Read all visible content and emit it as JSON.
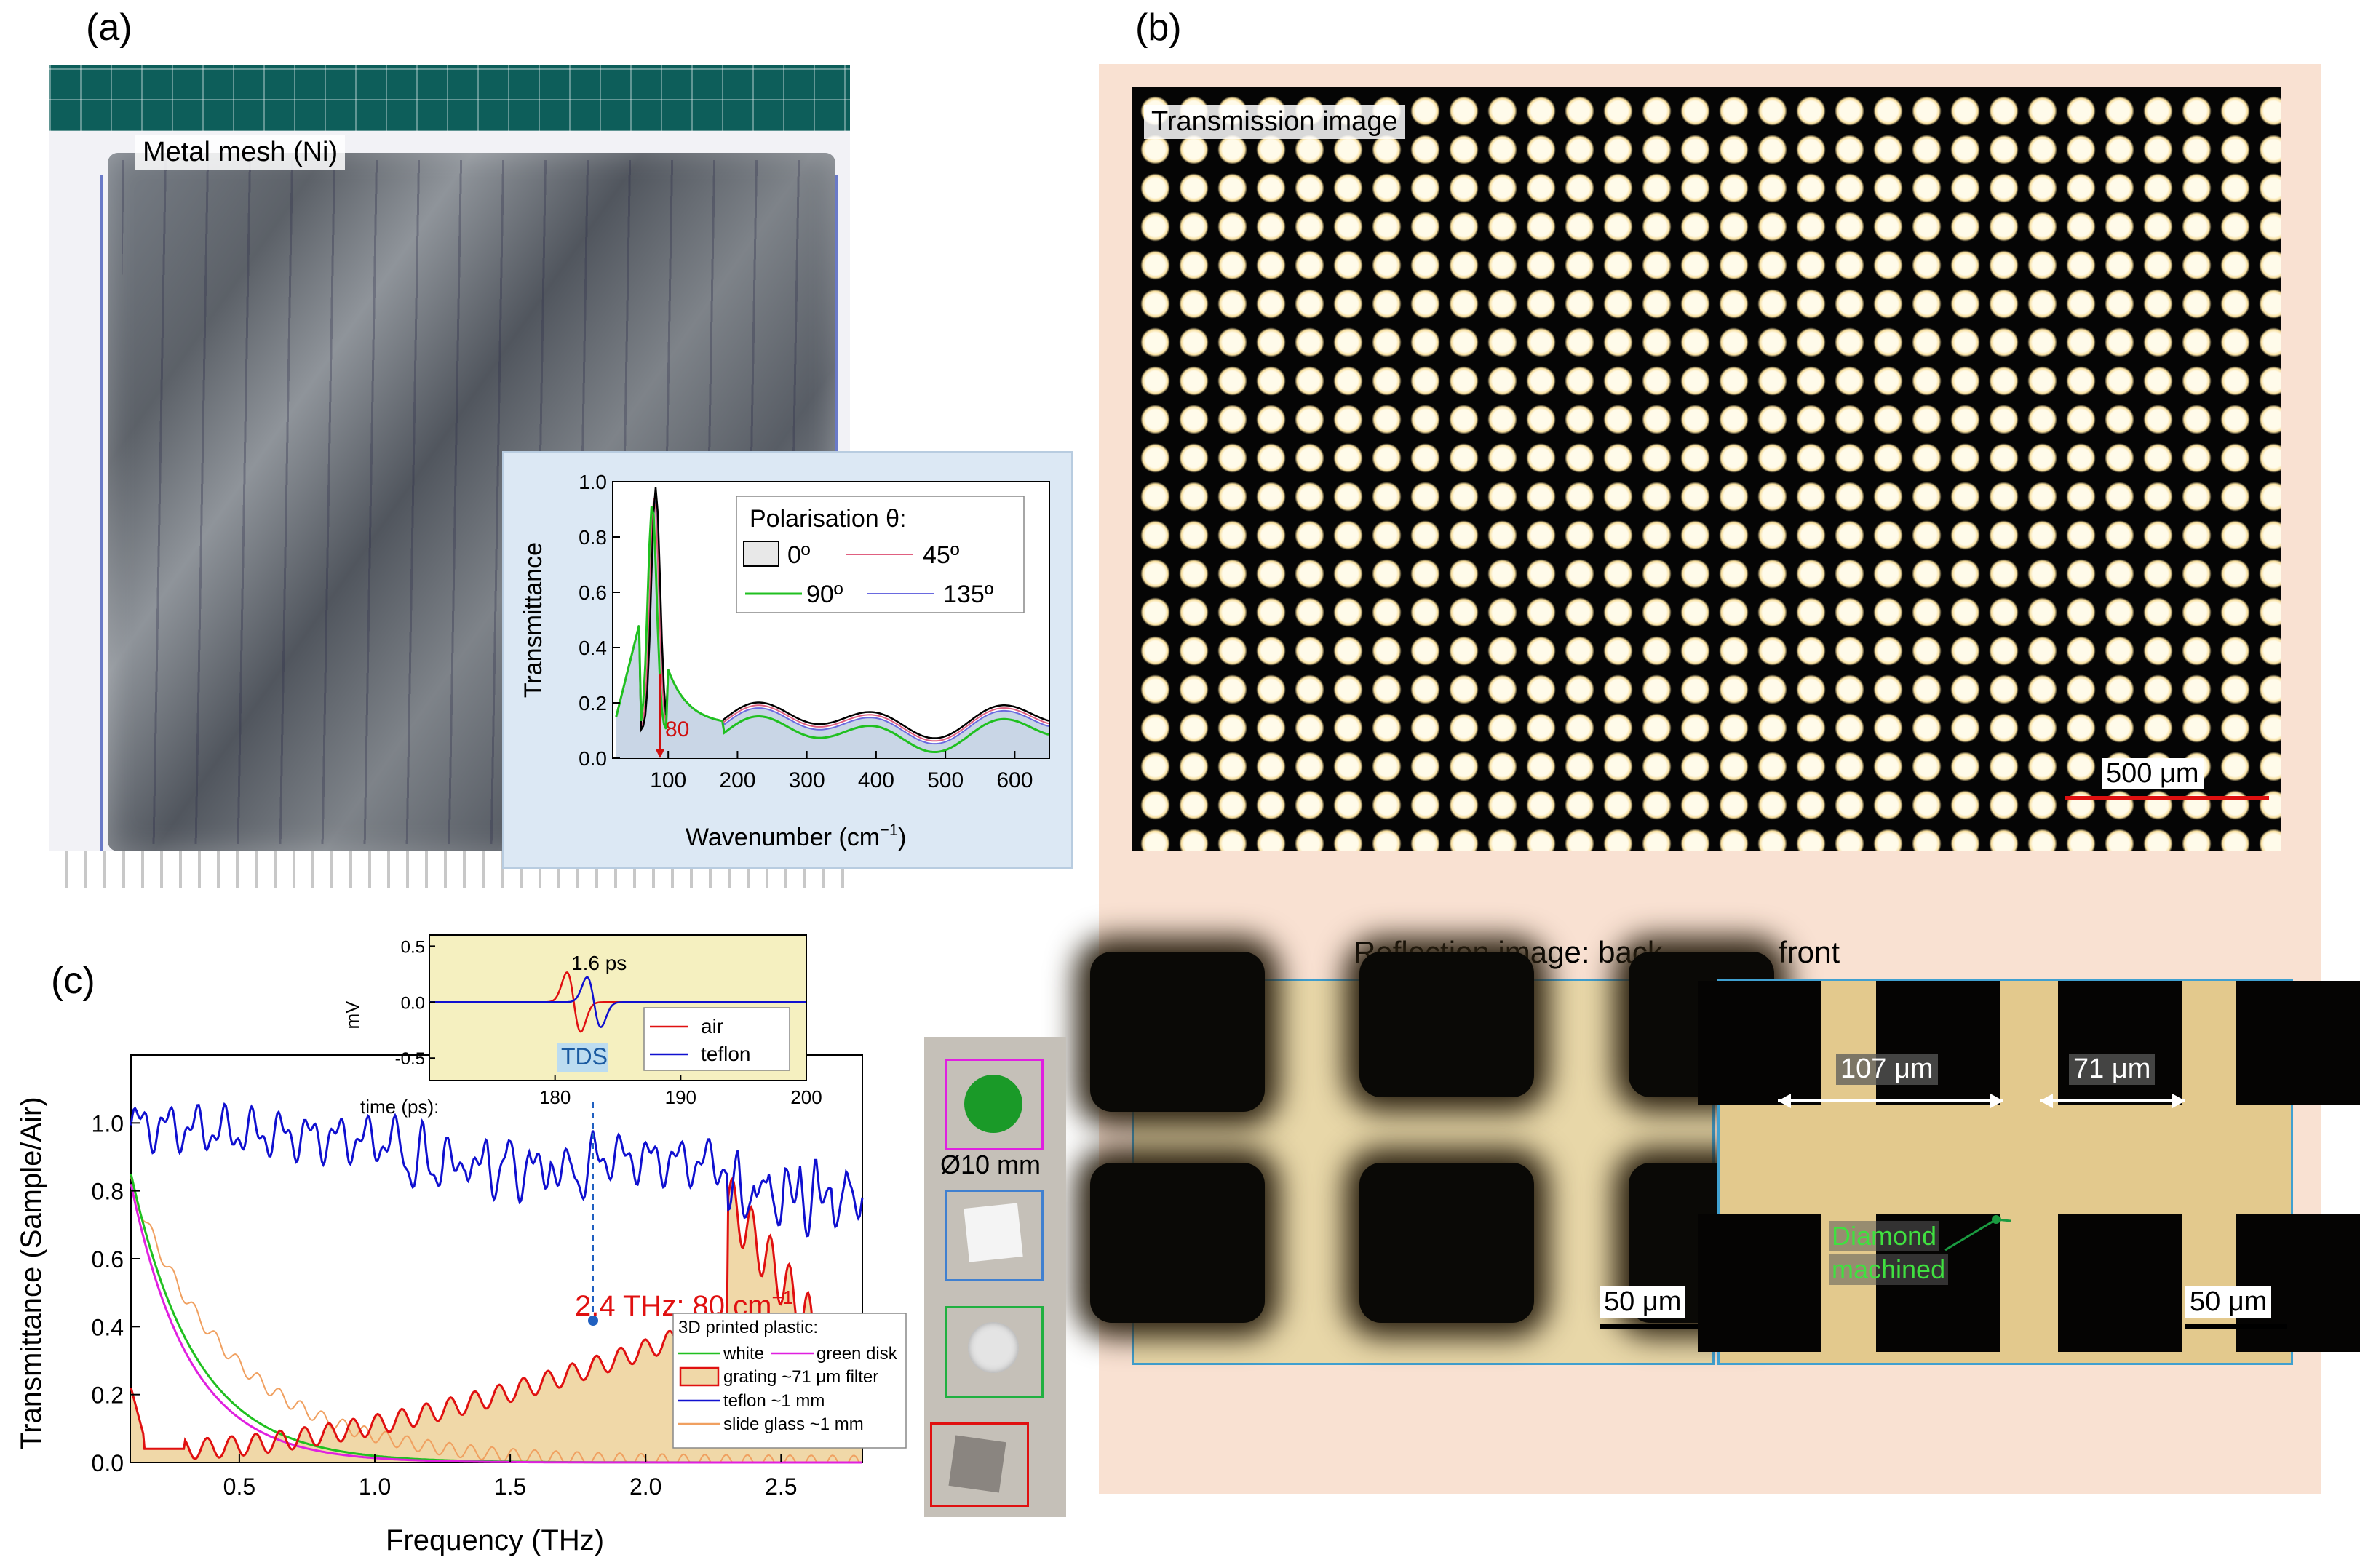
{
  "panels": {
    "a": "(a)",
    "b": "(b)",
    "c": "(c)"
  },
  "panel_a": {
    "photo_label": "Metal mesh (Ni)",
    "inset": {
      "ylabel": "Transmittance",
      "xlabel": "Wavenumber (cm",
      "xlabel_sup": "−1",
      "xlabel_end": ")",
      "yticks": [
        "0.0",
        "0.2",
        "0.4",
        "0.6",
        "0.8",
        "1.0"
      ],
      "xticks": [
        "100",
        "200",
        "300",
        "400",
        "500",
        "600"
      ],
      "marker_label": "80",
      "legend_title": "Polarisation θ:",
      "legend": [
        "0º",
        "45º",
        "90º",
        "135º"
      ]
    }
  },
  "panel_b": {
    "transmission_label": "Transmission image",
    "scale_top": "500 μm",
    "reflection_label": "Reflection image: back",
    "front_label": "front",
    "dim1": "107 μm",
    "dim2": "71 μm",
    "diamond": [
      "Diamond",
      "machined"
    ],
    "scale_back": "50 μm",
    "scale_front": "50 μm"
  },
  "panel_c": {
    "ylabel": "Transmittance (Sample/Air)",
    "xlabel": "Frequency (THz)",
    "yticks": [
      "0.0",
      "0.2",
      "0.4",
      "0.6",
      "0.8",
      "1.0"
    ],
    "xticks": [
      "0.5",
      "1.0",
      "1.5",
      "2.0",
      "2.5"
    ],
    "annotation": "2.4 THz; 80 cm",
    "annotation_sup": "−1",
    "tds_label": "TDS",
    "legend_title": "3D printed plastic:",
    "legend": [
      "white",
      "green disk",
      "grating ~71 μm filter",
      "teflon ~1 mm",
      "slide glass ~1 mm"
    ],
    "samples_label": "Ø10 mm",
    "inset": {
      "ylabel": "mV",
      "yticks": [
        "0.5",
        "0.0",
        "-0.5"
      ],
      "xticks": [
        "180",
        "190",
        "200"
      ],
      "xlabel": "time (ps):",
      "delay_label": "1.6 ps",
      "legend": [
        "air",
        "teflon"
      ]
    }
  },
  "colors": {
    "red": "#e01010",
    "blue": "#1010d0",
    "green": "#20c020",
    "magenta": "#e020e0",
    "orange": "#f0a060",
    "inset_bg": "#dce8f4",
    "panel_b_bg": "#f9e1d2",
    "fill": "#f0d8a8"
  }
}
